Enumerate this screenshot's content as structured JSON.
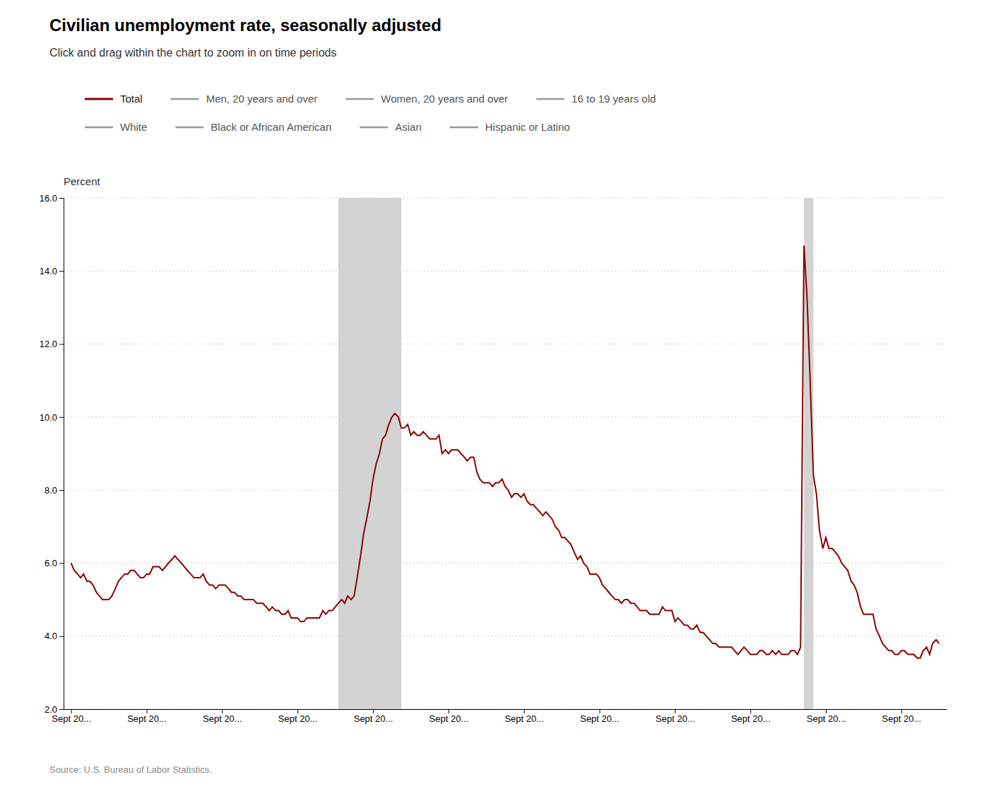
{
  "chart_data": {
    "type": "line",
    "title": "Civilian unemployment rate, seasonally adjusted",
    "subtitle": "Click and drag within the chart to zoom in on time periods",
    "ylabel": "Percent",
    "source": "Source: U.S. Bureau of Labor Statistics.",
    "grid": true,
    "xlim": [
      2000.55,
      2023.95
    ],
    "xticks": [
      {
        "value": 2000.75,
        "label": "Sept 20..."
      },
      {
        "value": 2002.75,
        "label": "Sept 20..."
      },
      {
        "value": 2004.75,
        "label": "Sept 20..."
      },
      {
        "value": 2006.75,
        "label": "Sept 20..."
      },
      {
        "value": 2008.75,
        "label": "Sept 20..."
      },
      {
        "value": 2010.75,
        "label": "Sept 20..."
      },
      {
        "value": 2012.75,
        "label": "Sept 20..."
      },
      {
        "value": 2014.75,
        "label": "Sept 20..."
      },
      {
        "value": 2016.75,
        "label": "Sept 20..."
      },
      {
        "value": 2018.75,
        "label": "Sept 20..."
      },
      {
        "value": 2020.75,
        "label": "Sept 20..."
      },
      {
        "value": 2022.75,
        "label": "Sept 20..."
      }
    ],
    "ylim": [
      2.0,
      16.0
    ],
    "yticks": [
      {
        "value": 2.0,
        "label": "2.0"
      },
      {
        "value": 4.0,
        "label": "4.0"
      },
      {
        "value": 6.0,
        "label": "6.0"
      },
      {
        "value": 8.0,
        "label": "8.0"
      },
      {
        "value": 10.0,
        "label": "10.0"
      },
      {
        "value": 12.0,
        "label": "12.0"
      },
      {
        "value": 14.0,
        "label": "14.0"
      },
      {
        "value": 16.0,
        "label": "16.0"
      }
    ],
    "recessions": [
      {
        "start": 2007.83,
        "end": 2009.5
      },
      {
        "start": 2020.17,
        "end": 2020.42
      }
    ],
    "annotations": [
      {
        "text": "Men, 20 years and over",
        "color": "#999999"
      },
      {
        "text": "Women, 20 years and over",
        "color": "#999999"
      },
      {
        "text": "16 to 19 years old",
        "color": "#999999"
      },
      {
        "text": "White",
        "color": "#999999"
      },
      {
        "text": "Black or African American",
        "color": "#999999"
      },
      {
        "text": "Asian",
        "color": "#999999"
      },
      {
        "text": "Hispanic or Latino",
        "color": "#999999"
      }
    ],
    "x": [
      2000.75,
      2000.83,
      2000.92,
      2001.0,
      2001.08,
      2001.17,
      2001.25,
      2001.33,
      2001.42,
      2001.5,
      2001.58,
      2001.67,
      2001.75,
      2001.83,
      2001.92,
      2002.0,
      2002.08,
      2002.17,
      2002.25,
      2002.33,
      2002.42,
      2002.5,
      2002.58,
      2002.67,
      2002.75,
      2002.83,
      2002.92,
      2003.0,
      2003.08,
      2003.17,
      2003.25,
      2003.33,
      2003.42,
      2003.5,
      2003.58,
      2003.67,
      2003.75,
      2003.83,
      2003.92,
      2004.0,
      2004.08,
      2004.17,
      2004.25,
      2004.33,
      2004.42,
      2004.5,
      2004.58,
      2004.67,
      2004.75,
      2004.83,
      2004.92,
      2005.0,
      2005.08,
      2005.17,
      2005.25,
      2005.33,
      2005.42,
      2005.5,
      2005.58,
      2005.67,
      2005.75,
      2005.83,
      2005.92,
      2006.0,
      2006.08,
      2006.17,
      2006.25,
      2006.33,
      2006.42,
      2006.5,
      2006.58,
      2006.67,
      2006.75,
      2006.83,
      2006.92,
      2007.0,
      2007.08,
      2007.17,
      2007.25,
      2007.33,
      2007.42,
      2007.5,
      2007.58,
      2007.67,
      2007.75,
      2007.83,
      2007.92,
      2008.0,
      2008.08,
      2008.17,
      2008.25,
      2008.33,
      2008.42,
      2008.5,
      2008.58,
      2008.67,
      2008.75,
      2008.83,
      2008.92,
      2009.0,
      2009.08,
      2009.17,
      2009.25,
      2009.33,
      2009.42,
      2009.5,
      2009.58,
      2009.67,
      2009.75,
      2009.83,
      2009.92,
      2010.0,
      2010.08,
      2010.17,
      2010.25,
      2010.33,
      2010.42,
      2010.5,
      2010.58,
      2010.67,
      2010.75,
      2010.83,
      2010.92,
      2011.0,
      2011.08,
      2011.17,
      2011.25,
      2011.33,
      2011.42,
      2011.5,
      2011.58,
      2011.67,
      2011.75,
      2011.83,
      2011.92,
      2012.0,
      2012.08,
      2012.17,
      2012.25,
      2012.33,
      2012.42,
      2012.5,
      2012.58,
      2012.67,
      2012.75,
      2012.83,
      2012.92,
      2013.0,
      2013.08,
      2013.17,
      2013.25,
      2013.33,
      2013.42,
      2013.5,
      2013.58,
      2013.67,
      2013.75,
      2013.83,
      2013.92,
      2014.0,
      2014.08,
      2014.17,
      2014.25,
      2014.33,
      2014.42,
      2014.5,
      2014.58,
      2014.67,
      2014.75,
      2014.83,
      2014.92,
      2015.0,
      2015.08,
      2015.17,
      2015.25,
      2015.33,
      2015.42,
      2015.5,
      2015.58,
      2015.67,
      2015.75,
      2015.83,
      2015.92,
      2016.0,
      2016.08,
      2016.17,
      2016.25,
      2016.33,
      2016.42,
      2016.5,
      2016.58,
      2016.67,
      2016.75,
      2016.83,
      2016.92,
      2017.0,
      2017.08,
      2017.17,
      2017.25,
      2017.33,
      2017.42,
      2017.5,
      2017.58,
      2017.67,
      2017.75,
      2017.83,
      2017.92,
      2018.0,
      2018.08,
      2018.17,
      2018.25,
      2018.33,
      2018.42,
      2018.5,
      2018.58,
      2018.67,
      2018.75,
      2018.83,
      2018.92,
      2019.0,
      2019.08,
      2019.17,
      2019.25,
      2019.33,
      2019.42,
      2019.5,
      2019.58,
      2019.67,
      2019.75,
      2019.83,
      2019.92,
      2020.0,
      2020.08,
      2020.17,
      2020.25,
      2020.33,
      2020.42,
      2020.5,
      2020.58,
      2020.67,
      2020.75,
      2020.83,
      2020.92,
      2021.0,
      2021.08,
      2021.17,
      2021.25,
      2021.33,
      2021.42,
      2021.5,
      2021.58,
      2021.67,
      2021.75,
      2021.83,
      2021.92,
      2022.0,
      2022.08,
      2022.17,
      2022.25,
      2022.33,
      2022.42,
      2022.5,
      2022.58,
      2022.67,
      2022.75,
      2022.83,
      2022.92,
      2023.0,
      2023.08,
      2023.17,
      2023.25,
      2023.33,
      2023.42,
      2023.5,
      2023.58,
      2023.67,
      2023.75
    ],
    "series": [
      {
        "name": "Total",
        "color": "#8B0000",
        "values": [
          6.0,
          5.8,
          5.7,
          5.6,
          5.7,
          5.5,
          5.5,
          5.4,
          5.2,
          5.1,
          5.0,
          5.0,
          5.0,
          5.1,
          5.3,
          5.5,
          5.6,
          5.7,
          5.7,
          5.8,
          5.8,
          5.7,
          5.6,
          5.6,
          5.7,
          5.7,
          5.9,
          5.9,
          5.9,
          5.8,
          5.9,
          6.0,
          6.1,
          6.2,
          6.1,
          6.0,
          5.9,
          5.8,
          5.7,
          5.6,
          5.6,
          5.6,
          5.7,
          5.5,
          5.4,
          5.4,
          5.3,
          5.4,
          5.4,
          5.4,
          5.3,
          5.2,
          5.2,
          5.1,
          5.1,
          5.0,
          5.0,
          5.0,
          5.0,
          4.9,
          4.9,
          4.9,
          4.8,
          4.7,
          4.8,
          4.7,
          4.7,
          4.6,
          4.6,
          4.7,
          4.5,
          4.5,
          4.5,
          4.4,
          4.4,
          4.5,
          4.5,
          4.5,
          4.5,
          4.5,
          4.7,
          4.6,
          4.7,
          4.7,
          4.8,
          4.9,
          5.0,
          4.9,
          5.1,
          5.0,
          5.1,
          5.6,
          6.2,
          6.8,
          7.2,
          7.7,
          8.3,
          8.7,
          9.0,
          9.4,
          9.5,
          9.8,
          10.0,
          10.1,
          10.0,
          9.7,
          9.7,
          9.8,
          9.5,
          9.6,
          9.5,
          9.5,
          9.6,
          9.5,
          9.4,
          9.4,
          9.4,
          9.5,
          9.0,
          9.1,
          9.0,
          9.1,
          9.1,
          9.1,
          9.0,
          8.9,
          8.8,
          8.9,
          8.9,
          8.5,
          8.3,
          8.2,
          8.2,
          8.2,
          8.1,
          8.2,
          8.2,
          8.3,
          8.1,
          8.0,
          7.8,
          7.9,
          7.9,
          7.8,
          7.9,
          7.7,
          7.6,
          7.6,
          7.5,
          7.4,
          7.3,
          7.4,
          7.3,
          7.2,
          7.0,
          6.9,
          6.7,
          6.7,
          6.6,
          6.5,
          6.3,
          6.1,
          6.2,
          6.0,
          5.9,
          5.7,
          5.7,
          5.7,
          5.6,
          5.4,
          5.3,
          5.2,
          5.1,
          5.0,
          5.0,
          4.9,
          5.0,
          5.0,
          4.9,
          4.9,
          4.8,
          4.7,
          4.7,
          4.7,
          4.6,
          4.6,
          4.6,
          4.6,
          4.8,
          4.7,
          4.7,
          4.7,
          4.4,
          4.5,
          4.4,
          4.3,
          4.3,
          4.2,
          4.2,
          4.3,
          4.1,
          4.1,
          4.0,
          3.9,
          3.8,
          3.8,
          3.7,
          3.7,
          3.7,
          3.7,
          3.7,
          3.6,
          3.5,
          3.6,
          3.7,
          3.6,
          3.5,
          3.5,
          3.5,
          3.6,
          3.6,
          3.5,
          3.5,
          3.6,
          3.5,
          3.6,
          3.5,
          3.5,
          3.5,
          3.6,
          3.6,
          3.5,
          3.7,
          14.7,
          13.3,
          11.1,
          8.4,
          7.9,
          6.9,
          6.4,
          6.7,
          6.4,
          6.4,
          6.3,
          6.2,
          6.0,
          5.9,
          5.8,
          5.5,
          5.4,
          5.2,
          4.8,
          4.6,
          4.6,
          4.6,
          4.6,
          4.2,
          4.0,
          3.8,
          3.7,
          3.6,
          3.6,
          3.5,
          3.5,
          3.6,
          3.6,
          3.5,
          3.5,
          3.5,
          3.4,
          3.4,
          3.6,
          3.7,
          3.5,
          3.8,
          3.9,
          3.8
        ]
      }
    ]
  }
}
